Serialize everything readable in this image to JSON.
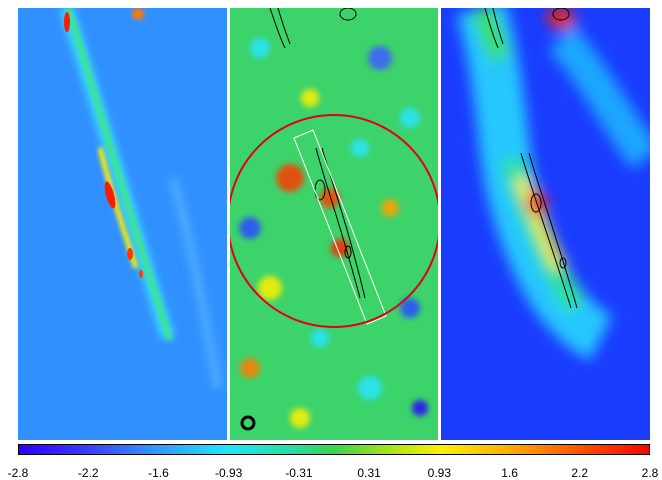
{
  "panels": [
    {
      "name": "left-map-panel"
    },
    {
      "name": "middle-map-panel"
    },
    {
      "name": "right-map-panel"
    }
  ],
  "colorbar": {
    "ticks": [
      "-2.8",
      "-2.2",
      "-1.6",
      "-0.93",
      "-0.31",
      "0.31",
      "0.93",
      "1.6",
      "2.2",
      "2.8"
    ],
    "colors": [
      "#2a00ff",
      "#2d9bff",
      "#1ee6ff",
      "#3bd34a",
      "#fff000",
      "#ff0000"
    ]
  }
}
